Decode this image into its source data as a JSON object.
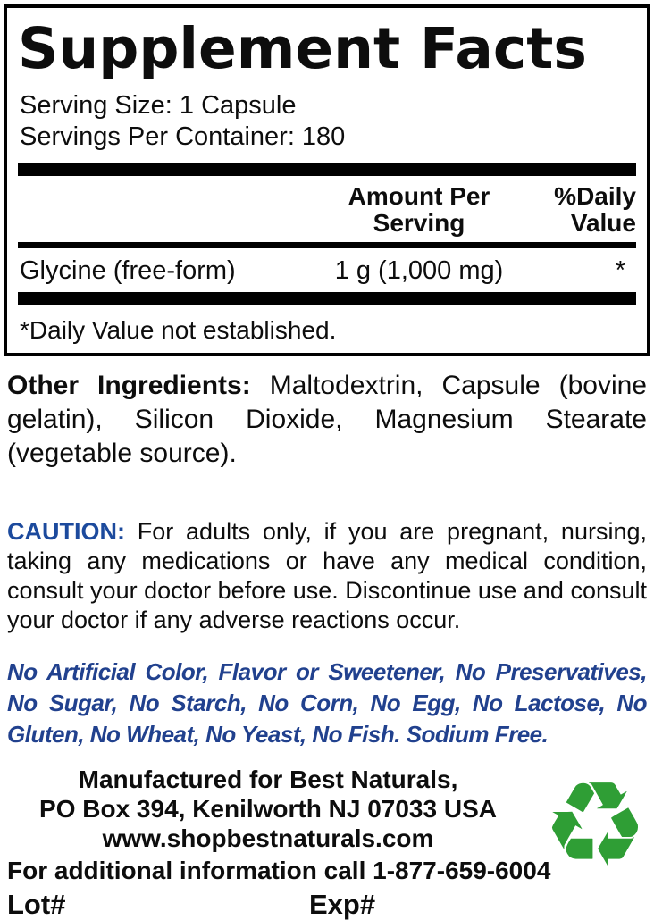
{
  "panel": {
    "title": "Supplement Facts",
    "serving_size": "Serving Size: 1 Capsule",
    "servings_per_container": "Servings Per Container: 180",
    "columns": {
      "amount": "Amount Per Serving",
      "daily": "%Daily Value"
    },
    "rows": [
      {
        "name": "Glycine (free-form)",
        "amount": "1 g (1,000 mg)",
        "daily": "*"
      }
    ],
    "footnote": "*Daily Value not established."
  },
  "other_ingredients": {
    "label": "Other Ingredients:",
    "text": "Maltodextrin, Capsule (bovine gelatin), Silicon Dioxide, Magnesium Stearate (vegetable source)."
  },
  "caution": {
    "label": "CAUTION:",
    "text": "For adults only, if you are pregnant, nursing, taking any medications or have any medical condition, consult your doctor before use. Discontinue use and consult your doctor if any adverse reactions occur."
  },
  "claims": "No Artificial Color, Flavor or Sweetener, No Preservatives, No Sugar, No Starch, No Corn, No Egg, No Lactose, No Gluten, No Wheat, No Yeast, No Fish. Sodium Free.",
  "footer": {
    "line1": "Manufactured for Best Naturals,",
    "line2": "PO Box 394, Kenilworth NJ 07033 USA",
    "line3": "www.shopbestnaturals.com",
    "line4": "For additional information call 1-877-659-6004",
    "lot_label": "Lot#",
    "exp_label": "Exp#",
    "recycle_glyph": "♻"
  },
  "colors": {
    "caution_blue": "#1c4a9d",
    "claims_navy": "#21418e",
    "recycle_green": "#2f9e35",
    "bar_black": "#000000"
  }
}
